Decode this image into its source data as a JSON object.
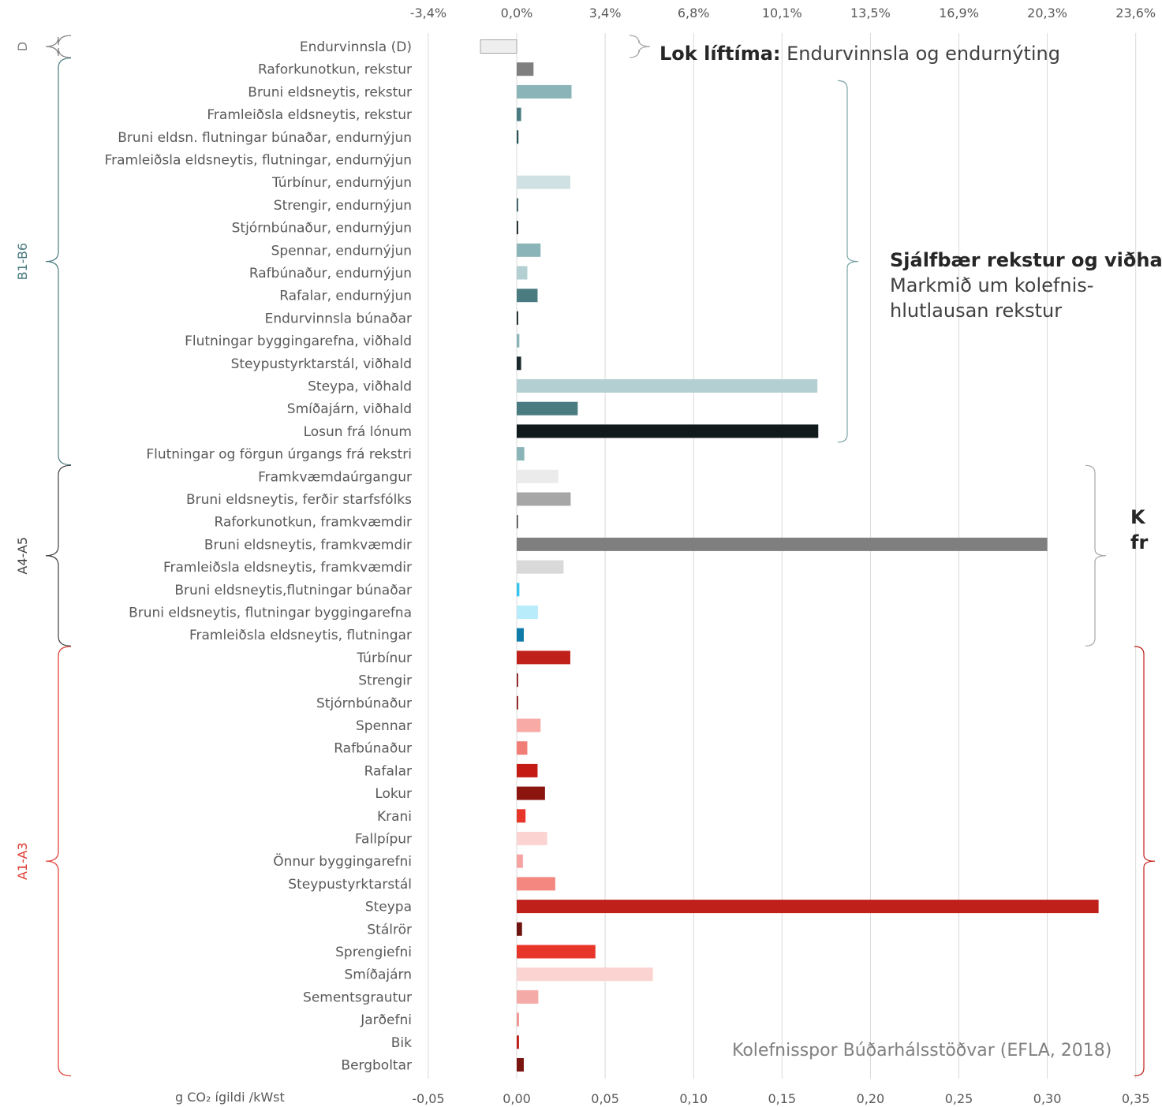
{
  "chart_data": {
    "type": "bar",
    "orientation": "horizontal",
    "categories": [
      "Endurvinnsla (D)",
      "Raforkunotkun, rekstur",
      "Bruni eldsneytis, rekstur",
      "Framleiðsla eldsneytis, rekstur",
      "Bruni eldsn. flutningar búnaðar, endurnýjun",
      "Framleiðsla eldsneytis, flutningar, endurnýjun",
      "Túrbínur, endurnýjun",
      "Strengir, endurnýjun",
      "Stjórnbúnaður, endurnýjun",
      "Spennar, endurnýjun",
      "Rafbúnaður, endurnýjun",
      "Rafalar, endurnýjun",
      "Endurvinnsla búnaðar",
      "Flutningar byggingarefna, viðhald",
      "Steypustyrktarstál, viðhald",
      "Steypa, viðhald",
      "Smíðajárn, viðhald",
      "Losun frá lónum",
      "Flutningar og förgun úrgangs frá rekstri",
      "Framkvæmdaúrgangur",
      "Bruni eldsneytis, ferðir starfsfólks",
      "Raforkunotkun, framkvæmdir",
      "Bruni eldsneytis, framkvæmdir",
      "Framleiðsla eldsneytis, framkvæmdir",
      "Bruni eldsneytis,flutningar búnaðar",
      "Bruni eldsneytis, flutningar byggingarefna",
      "Framleiðsla eldsneytis, flutningar",
      "Túrbínur",
      "Strengir",
      "Stjórnbúnaður",
      "Spennar",
      "Rafbúnaður",
      "Rafalar",
      "Lokur",
      "Krani",
      "Fallpípur",
      "Önnur byggingarefni",
      "Steypustyrktarstál",
      "Steypa",
      "Stálrör",
      "Sprengiefni",
      "Smíðajárn",
      "Sementsgrautur",
      "Jarðefni",
      "Bik",
      "Bergboltar"
    ],
    "values": [
      -0.0205,
      0.0095,
      0.031,
      0.0025,
      0.001,
      0.0,
      0.0303,
      0.0008,
      0.0008,
      0.0135,
      0.006,
      0.0118,
      0.0008,
      0.0015,
      0.0025,
      0.17,
      0.0345,
      0.1705,
      0.0043,
      0.0235,
      0.0305,
      0.0007,
      0.3,
      0.0265,
      0.0015,
      0.012,
      0.004,
      0.0303,
      0.0008,
      0.0008,
      0.0135,
      0.006,
      0.0118,
      0.016,
      0.005,
      0.0172,
      0.0035,
      0.0218,
      0.329,
      0.003,
      0.0445,
      0.077,
      0.0122,
      0.0013,
      0.0013,
      0.004
    ],
    "colors": [
      "#eeeeee",
      "#7f7f7f",
      "#8ab4b8",
      "#4a7b80",
      "#2d5559",
      "#cfe1e3",
      "#cfe1e3",
      "#2d5559",
      "#0d1a1b",
      "#8ab4b8",
      "#b3cfd2",
      "#4a7b80",
      "#0d1a1b",
      "#8ab4b8",
      "#1a2a2c",
      "#b3cfd2",
      "#4a7b80",
      "#111a1b",
      "#8ab4b8",
      "#ebebeb",
      "#a6a6a6",
      "#404040",
      "#7f7f7f",
      "#d9d9d9",
      "#31c5f0",
      "#b9ecfa",
      "#0e7ba8",
      "#c0201a",
      "#8a1512",
      "#8a1512",
      "#f7aaa6",
      "#f07d76",
      "#c41c14",
      "#8c1510",
      "#e8352a",
      "#fbd3d0",
      "#f4a3a0",
      "#f4877f",
      "#c0201a",
      "#6e1410",
      "#e8352a",
      "#fbd4d2",
      "#f4aaa6",
      "#f09591",
      "#c0201a",
      "#7a1510"
    ],
    "outlined_index": 0,
    "x_ticks_bottom": [
      "-0,05",
      "0,00",
      "0,05",
      "0,10",
      "0,15",
      "0,20",
      "0,25",
      "0,30",
      "0,35"
    ],
    "x_tick_values": [
      -0.05,
      0.0,
      0.05,
      0.1,
      0.15,
      0.2,
      0.25,
      0.3,
      0.35
    ],
    "x_ticks_top": [
      "-3,4%",
      "0,0%",
      "3,4%",
      "6,8%",
      "10,1%",
      "13,5%",
      "16,9%",
      "20,3%",
      "23,6%"
    ],
    "xlim": [
      -0.05,
      0.35
    ],
    "xlabel": "g CO₂ ígildi /kWst",
    "grid": "vertical",
    "groups": [
      {
        "label": "D",
        "first": 0,
        "last": 0,
        "color": "#808080"
      },
      {
        "label": "B1-B6",
        "first": 1,
        "last": 18,
        "color": "#4a7b80"
      },
      {
        "label": "A4-A5",
        "first": 19,
        "last": 26,
        "color": "#404040"
      },
      {
        "label": "A1-A3",
        "first": 27,
        "last": 45,
        "color": "#e03a30"
      }
    ],
    "right_braces": [
      {
        "first": 0,
        "last": 0,
        "color": "#a6a6a6"
      },
      {
        "first": 2,
        "last": 17,
        "color": "#7aa3a8"
      },
      {
        "first": 19,
        "last": 26,
        "color": "#a6a6a6"
      },
      {
        "first": 27,
        "last": 45,
        "color": "#c0201a"
      }
    ]
  },
  "annotations": {
    "end_of_life_bold": "Lok líftíma:",
    "end_of_life_text": " Endurvinnsla og endurnýting",
    "operation_bold": "Sjálfbær rekstur og viðhald",
    "operation_line2": "Markmið um kolefnis-",
    "operation_line3": "hlutlausan rekstur",
    "construction_bold_line1": "K",
    "construction_bold_line2": "fr"
  },
  "source": "Kolefnisspor Búðarhálsstöðvar (EFLA, 2018)"
}
